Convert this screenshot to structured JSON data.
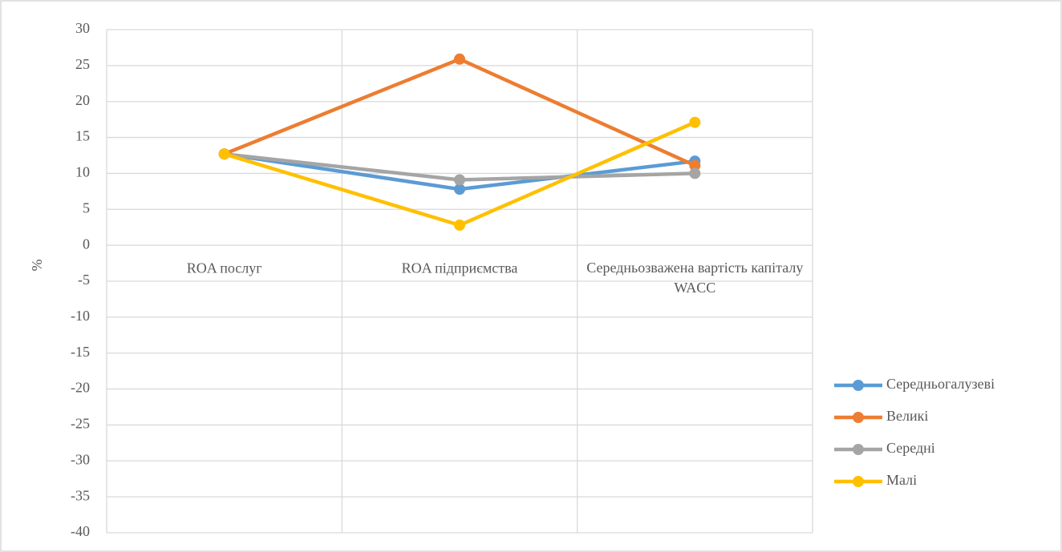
{
  "chart_data": {
    "type": "line",
    "categories": [
      "ROA послуг",
      "ROA підприємства",
      "Середньозважена вартість капіталу WACC"
    ],
    "series": [
      {
        "name": "Середньогалузеві",
        "color": "#5b9bd5",
        "values": [
          12.7,
          7.8,
          11.7
        ]
      },
      {
        "name": "Великі",
        "color": "#ed7d31",
        "values": [
          12.7,
          25.9,
          11.1
        ]
      },
      {
        "name": "Середні",
        "color": "#a5a5a5",
        "values": [
          12.7,
          9.1,
          10.0
        ]
      },
      {
        "name": "Малі",
        "color": "#ffc000",
        "values": [
          12.7,
          2.8,
          17.1
        ]
      }
    ],
    "y_label": "%",
    "ylim": [
      -40,
      30
    ],
    "yticks": [
      -40,
      -35,
      -30,
      -25,
      -20,
      -15,
      -10,
      -5,
      0,
      5,
      10,
      15,
      20,
      25,
      30
    ],
    "grid": true,
    "legend": "right"
  }
}
